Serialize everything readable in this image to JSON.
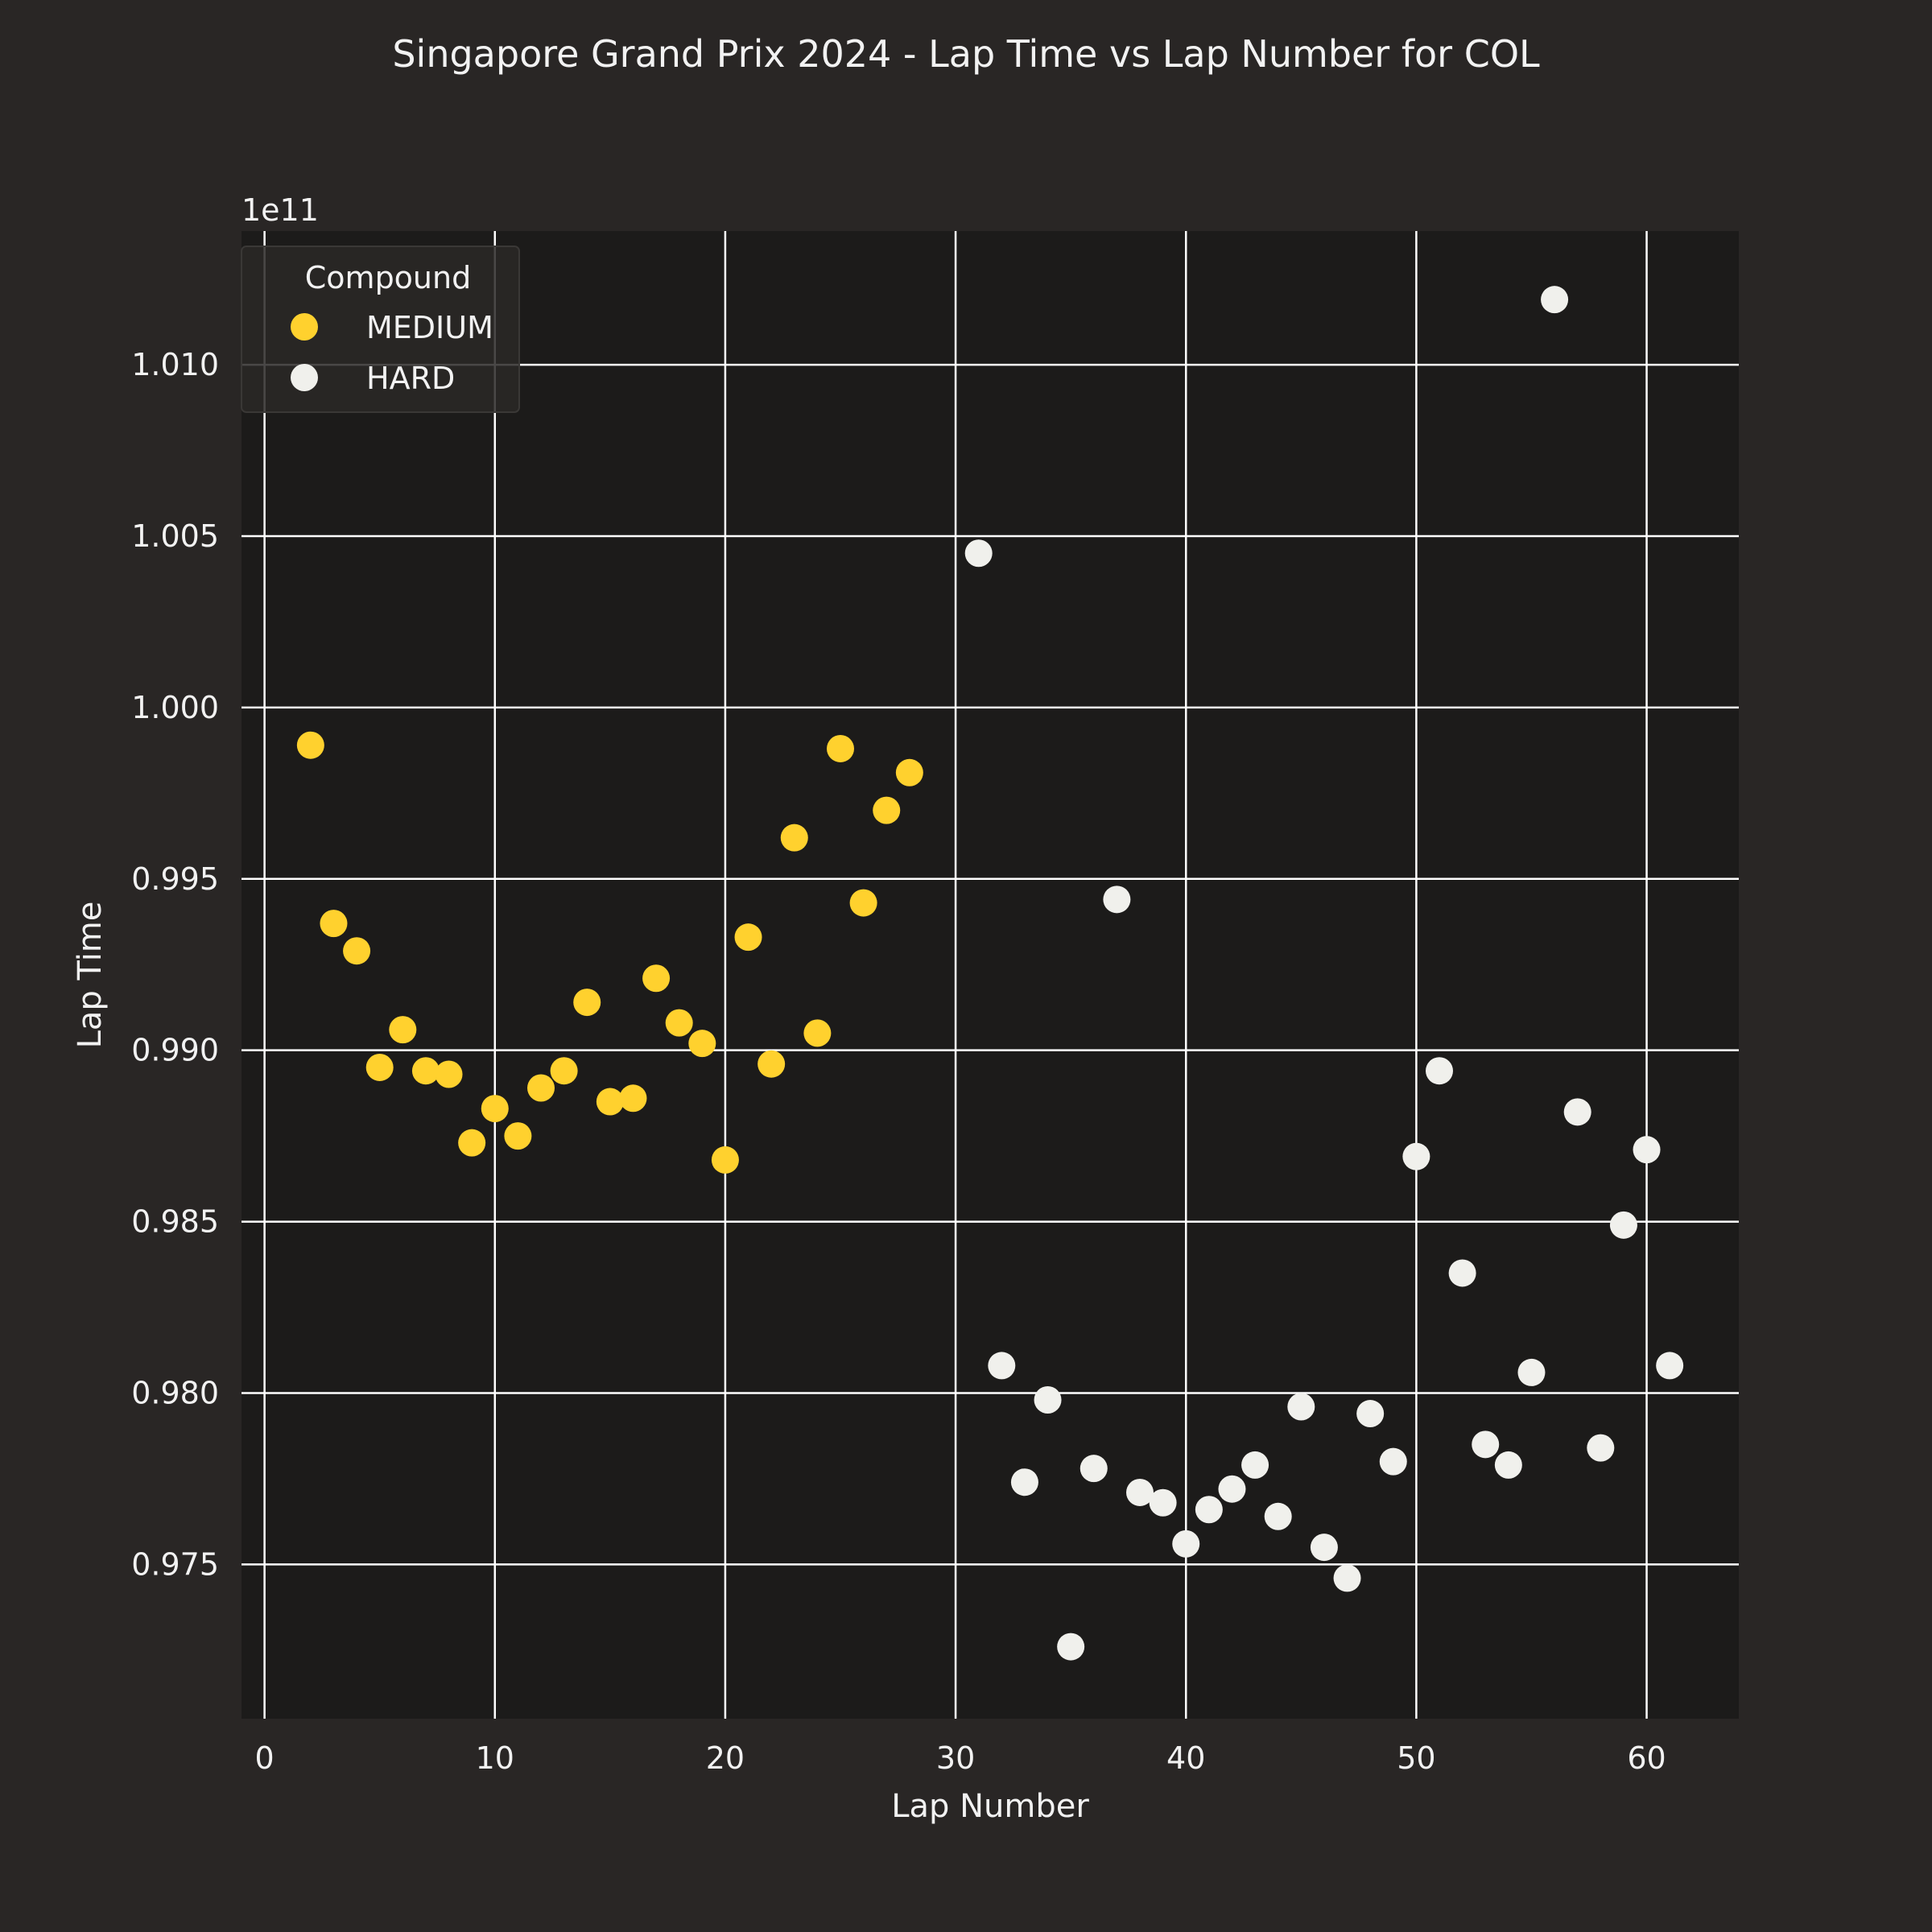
{
  "chart_data": {
    "type": "scatter",
    "title": "Singapore Grand Prix 2024 - Lap Time vs Lap Number for COL",
    "xlabel": "Lap Number",
    "ylabel": "Lap Time",
    "y_offset_label": "1e11",
    "xlim": [
      -1,
      64
    ],
    "ylim": [
      0.9705,
      1.0139
    ],
    "x_ticks": [
      0,
      10,
      20,
      30,
      40,
      50,
      60
    ],
    "y_ticks": [
      0.975,
      0.98,
      0.985,
      0.99,
      0.995,
      1.0,
      1.005,
      1.01
    ],
    "y_tick_labels": [
      "0.975",
      "0.980",
      "0.985",
      "0.990",
      "0.995",
      "1.000",
      "1.005",
      "1.010"
    ],
    "grid": true,
    "legend": {
      "title": "Compound",
      "placement": "top-left"
    },
    "colors": {
      "background": "#292625",
      "plot_background": "#1c1b1a",
      "grid": "#ffffff",
      "MEDIUM": "#ffd12e",
      "HARD": "#f0f0ec"
    },
    "series": [
      {
        "name": "MEDIUM",
        "points": [
          [
            2,
            0.9989
          ],
          [
            3,
            0.9937
          ],
          [
            4,
            0.9929
          ],
          [
            5,
            0.9895
          ],
          [
            6,
            0.9906
          ],
          [
            7,
            0.9894
          ],
          [
            8,
            0.9893
          ],
          [
            9,
            0.9873
          ],
          [
            10,
            0.9883
          ],
          [
            11,
            0.9875
          ],
          [
            12,
            0.9889
          ],
          [
            13,
            0.9894
          ],
          [
            14,
            0.9914
          ],
          [
            15,
            0.9885
          ],
          [
            16,
            0.9886
          ],
          [
            17,
            0.9921
          ],
          [
            18,
            0.9908
          ],
          [
            19,
            0.9902
          ],
          [
            20,
            0.9868
          ],
          [
            21,
            0.9933
          ],
          [
            22,
            0.9896
          ],
          [
            23,
            0.9962
          ],
          [
            24,
            0.9905
          ],
          [
            25,
            0.9988
          ],
          [
            26,
            0.9943
          ],
          [
            27,
            0.997
          ],
          [
            28,
            0.9981
          ]
        ]
      },
      {
        "name": "HARD",
        "points": [
          [
            31,
            1.0045
          ],
          [
            32,
            0.9808
          ],
          [
            33,
            0.9774
          ],
          [
            34,
            0.9798
          ],
          [
            35,
            0.9726
          ],
          [
            36,
            0.9778
          ],
          [
            37,
            0.9944
          ],
          [
            38,
            0.9771
          ],
          [
            39,
            0.9768
          ],
          [
            40,
            0.9756
          ],
          [
            41,
            0.9766
          ],
          [
            42,
            0.9772
          ],
          [
            43,
            0.9779
          ],
          [
            44,
            0.9764
          ],
          [
            45,
            0.9796
          ],
          [
            46,
            0.9755
          ],
          [
            47,
            0.9746
          ],
          [
            48,
            0.9794
          ],
          [
            49,
            0.978
          ],
          [
            50,
            0.9869
          ],
          [
            51,
            0.9894
          ],
          [
            52,
            0.9835
          ],
          [
            53,
            0.9785
          ],
          [
            54,
            0.9779
          ],
          [
            55,
            0.9806
          ],
          [
            56,
            1.0119
          ],
          [
            57,
            0.9882
          ],
          [
            58,
            0.9784
          ],
          [
            59,
            0.9849
          ],
          [
            60,
            0.9871
          ],
          [
            61,
            0.9808
          ]
        ]
      }
    ]
  }
}
